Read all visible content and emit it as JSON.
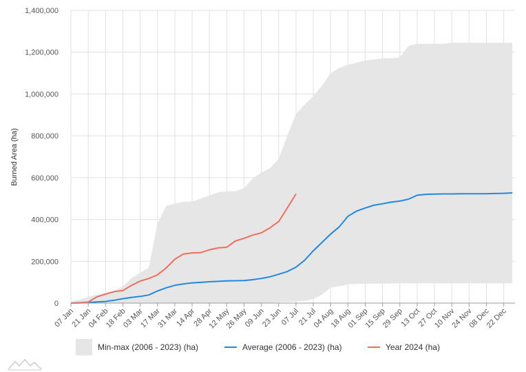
{
  "chart_data": {
    "type": "line",
    "ylabel": "Burned Area (ha)",
    "ylim": [
      0,
      1400000
    ],
    "y_ticks": [
      0,
      200000,
      400000,
      600000,
      800000,
      1000000,
      1200000,
      1400000
    ],
    "y_tick_labels": [
      "0",
      "200,000",
      "400,000",
      "600,000",
      "800,000",
      "1,000,000",
      "1,200,000",
      "1,400,000"
    ],
    "x_tick_labels": [
      "07 Jan",
      "21 Jan",
      "04 Feb",
      "18 Feb",
      "03 Mar",
      "17 Mar",
      "31 Mar",
      "14 Apr",
      "28 Apr",
      "12 May",
      "26 May",
      "09 Jun",
      "23 Jun",
      "07 Jul",
      "21 Jul",
      "04 Aug",
      "18 Aug",
      "01 Sep",
      "15 Sep",
      "29 Sep",
      "13 Oct",
      "27 Oct",
      "10 Nov",
      "24 Nov",
      "08 Dec",
      "22 Dec"
    ],
    "x_unit": "week of year",
    "grid": true,
    "legend_position": "bottom",
    "range": {
      "name": "Min-max (2006 - 2023) (ha)",
      "color": "#e6e6e6",
      "x": [
        1,
        2,
        3,
        4,
        5,
        6,
        7,
        8,
        9,
        10,
        11,
        12,
        13,
        14,
        15,
        16,
        17,
        18,
        19,
        20,
        21,
        22,
        23,
        24,
        25,
        26,
        27,
        28,
        29,
        30,
        31,
        32,
        33,
        34,
        35,
        36,
        37,
        38,
        39,
        40,
        41,
        42,
        43,
        44,
        45,
        46,
        47,
        48,
        49,
        50,
        51,
        52
      ],
      "min": [
        0,
        0,
        0,
        0,
        0,
        0,
        0,
        0,
        0,
        0,
        0,
        0,
        0,
        0,
        0,
        0,
        0,
        0,
        0,
        0,
        0,
        0,
        0,
        0,
        5000,
        5000,
        8000,
        10000,
        20000,
        40000,
        75000,
        80000,
        90000,
        92000,
        93000,
        93000,
        93000,
        94000,
        95000,
        95000,
        95000,
        95000,
        95000,
        95000,
        95000,
        95000,
        95000,
        95000,
        95000,
        95000,
        95000,
        95000
      ],
      "max": [
        10000,
        15000,
        30000,
        40000,
        50000,
        60000,
        80000,
        120000,
        145000,
        170000,
        380000,
        465000,
        475000,
        485000,
        485000,
        500000,
        515000,
        530000,
        535000,
        535000,
        550000,
        595000,
        625000,
        645000,
        690000,
        800000,
        905000,
        950000,
        990000,
        1040000,
        1100000,
        1125000,
        1140000,
        1150000,
        1160000,
        1165000,
        1170000,
        1170000,
        1175000,
        1230000,
        1240000,
        1240000,
        1240000,
        1240000,
        1245000,
        1245000,
        1245000,
        1245000,
        1245000,
        1245000,
        1245000,
        1245000
      ]
    },
    "series": [
      {
        "name": "Average (2006 - 2023) (ha)",
        "color": "#1e88e5",
        "x": [
          1,
          2,
          3,
          4,
          5,
          6,
          7,
          8,
          9,
          10,
          11,
          12,
          13,
          14,
          15,
          16,
          17,
          18,
          19,
          20,
          21,
          22,
          23,
          24,
          25,
          26,
          27,
          28,
          29,
          30,
          31,
          32,
          33,
          34,
          35,
          36,
          37,
          38,
          39,
          40,
          41,
          42,
          43,
          44,
          45,
          46,
          47,
          48,
          49,
          50,
          51,
          52
        ],
        "values": [
          0,
          1000,
          3000,
          6000,
          8000,
          14000,
          21000,
          27000,
          32000,
          39000,
          58000,
          73000,
          85000,
          92000,
          97000,
          99000,
          102000,
          104000,
          106000,
          107000,
          108000,
          112000,
          118000,
          126000,
          138000,
          151000,
          172000,
          205000,
          250000,
          290000,
          330000,
          365000,
          415000,
          440000,
          455000,
          468000,
          475000,
          483000,
          488000,
          497000,
          516000,
          520000,
          521000,
          522000,
          522000,
          523000,
          523000,
          523000,
          523000,
          524000,
          525000,
          527000
        ]
      },
      {
        "name": "Year 2024 (ha)",
        "color": "#f26b5b",
        "x": [
          1,
          2,
          3,
          4,
          5,
          6,
          7,
          8,
          9,
          10,
          11,
          12,
          13,
          14,
          15,
          16,
          17,
          18,
          19,
          20,
          21,
          22,
          23,
          24,
          25,
          26,
          27
        ],
        "values": [
          0,
          2000,
          5000,
          30000,
          43000,
          55000,
          60000,
          85000,
          105000,
          118000,
          135000,
          168000,
          210000,
          235000,
          240000,
          241000,
          255000,
          264000,
          267000,
          297000,
          310000,
          325000,
          336000,
          360000,
          390000,
          455000,
          522000
        ]
      }
    ]
  }
}
